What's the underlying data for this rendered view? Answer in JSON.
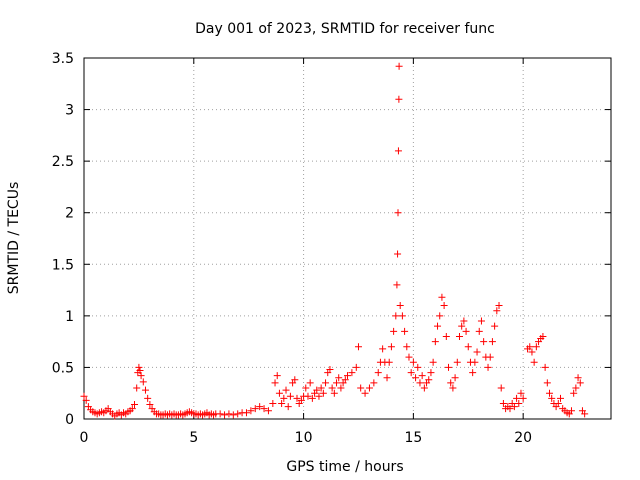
{
  "chart_data": {
    "type": "scatter",
    "title": "Day 001 of 2023, SRMTID for receiver func",
    "xlabel": "GPS time / hours",
    "ylabel": "SRMTID / TECUs",
    "xlim": [
      0,
      24
    ],
    "ylim": [
      0,
      3.5
    ],
    "xticks": [
      0,
      5,
      10,
      15,
      20
    ],
    "xtick_labels": [
      "0",
      "5",
      "10",
      "15",
      "20"
    ],
    "yticks": [
      0,
      0.5,
      1,
      1.5,
      2,
      2.5,
      3,
      3.5
    ],
    "ytick_labels": [
      "0",
      "0.5",
      "1",
      "1.5",
      "2",
      "2.5",
      "3",
      "3.5"
    ],
    "grid": true,
    "marker": "+",
    "series": [
      {
        "name": "SRMTID",
        "color": "#ff0000",
        "points": [
          [
            0.0,
            0.22
          ],
          [
            0.1,
            0.18
          ],
          [
            0.2,
            0.12
          ],
          [
            0.3,
            0.09
          ],
          [
            0.4,
            0.07
          ],
          [
            0.5,
            0.06
          ],
          [
            0.6,
            0.05
          ],
          [
            0.7,
            0.06
          ],
          [
            0.8,
            0.07
          ],
          [
            0.9,
            0.06
          ],
          [
            1.0,
            0.08
          ],
          [
            1.1,
            0.1
          ],
          [
            1.2,
            0.07
          ],
          [
            1.3,
            0.05
          ],
          [
            1.4,
            0.03
          ],
          [
            1.5,
            0.05
          ],
          [
            1.6,
            0.06
          ],
          [
            1.7,
            0.04
          ],
          [
            1.8,
            0.06
          ],
          [
            1.9,
            0.05
          ],
          [
            2.0,
            0.07
          ],
          [
            2.1,
            0.08
          ],
          [
            2.2,
            0.1
          ],
          [
            2.3,
            0.14
          ],
          [
            2.4,
            0.3
          ],
          [
            2.45,
            0.45
          ],
          [
            2.5,
            0.5
          ],
          [
            2.55,
            0.47
          ],
          [
            2.6,
            0.42
          ],
          [
            2.7,
            0.36
          ],
          [
            2.8,
            0.28
          ],
          [
            2.9,
            0.2
          ],
          [
            3.0,
            0.14
          ],
          [
            3.1,
            0.1
          ],
          [
            3.2,
            0.07
          ],
          [
            3.3,
            0.05
          ],
          [
            3.4,
            0.05
          ],
          [
            3.5,
            0.04
          ],
          [
            3.6,
            0.04
          ],
          [
            3.7,
            0.05
          ],
          [
            3.8,
            0.04
          ],
          [
            3.9,
            0.05
          ],
          [
            4.0,
            0.04
          ],
          [
            4.1,
            0.05
          ],
          [
            4.2,
            0.04
          ],
          [
            4.3,
            0.04
          ],
          [
            4.4,
            0.05
          ],
          [
            4.5,
            0.04
          ],
          [
            4.6,
            0.05
          ],
          [
            4.7,
            0.06
          ],
          [
            4.8,
            0.07
          ],
          [
            4.9,
            0.06
          ],
          [
            5.0,
            0.05
          ],
          [
            5.1,
            0.05
          ],
          [
            5.2,
            0.04
          ],
          [
            5.3,
            0.05
          ],
          [
            5.4,
            0.04
          ],
          [
            5.5,
            0.05
          ],
          [
            5.6,
            0.06
          ],
          [
            5.7,
            0.04
          ],
          [
            5.8,
            0.05
          ],
          [
            5.9,
            0.04
          ],
          [
            6.0,
            0.05
          ],
          [
            6.2,
            0.05
          ],
          [
            6.4,
            0.04
          ],
          [
            6.6,
            0.05
          ],
          [
            6.8,
            0.04
          ],
          [
            7.0,
            0.05
          ],
          [
            7.2,
            0.06
          ],
          [
            7.4,
            0.06
          ],
          [
            7.6,
            0.08
          ],
          [
            7.8,
            0.1
          ],
          [
            8.0,
            0.12
          ],
          [
            8.2,
            0.1
          ],
          [
            8.4,
            0.08
          ],
          [
            8.6,
            0.15
          ],
          [
            8.7,
            0.35
          ],
          [
            8.8,
            0.42
          ],
          [
            8.9,
            0.25
          ],
          [
            9.0,
            0.15
          ],
          [
            9.1,
            0.2
          ],
          [
            9.2,
            0.28
          ],
          [
            9.3,
            0.12
          ],
          [
            9.4,
            0.22
          ],
          [
            9.5,
            0.35
          ],
          [
            9.6,
            0.38
          ],
          [
            9.7,
            0.2
          ],
          [
            9.8,
            0.15
          ],
          [
            9.9,
            0.18
          ],
          [
            10.0,
            0.22
          ],
          [
            10.1,
            0.3
          ],
          [
            10.2,
            0.22
          ],
          [
            10.3,
            0.35
          ],
          [
            10.4,
            0.2
          ],
          [
            10.5,
            0.25
          ],
          [
            10.6,
            0.28
          ],
          [
            10.7,
            0.22
          ],
          [
            10.8,
            0.3
          ],
          [
            10.9,
            0.25
          ],
          [
            11.0,
            0.35
          ],
          [
            11.1,
            0.45
          ],
          [
            11.2,
            0.48
          ],
          [
            11.3,
            0.3
          ],
          [
            11.4,
            0.25
          ],
          [
            11.5,
            0.35
          ],
          [
            11.6,
            0.4
          ],
          [
            11.7,
            0.3
          ],
          [
            11.8,
            0.35
          ],
          [
            11.9,
            0.38
          ],
          [
            12.0,
            0.42
          ],
          [
            12.2,
            0.45
          ],
          [
            12.4,
            0.5
          ],
          [
            12.5,
            0.7
          ],
          [
            12.6,
            0.3
          ],
          [
            12.8,
            0.25
          ],
          [
            13.0,
            0.3
          ],
          [
            13.2,
            0.35
          ],
          [
            13.4,
            0.45
          ],
          [
            13.5,
            0.55
          ],
          [
            13.6,
            0.68
          ],
          [
            13.7,
            0.55
          ],
          [
            13.8,
            0.4
          ],
          [
            13.9,
            0.55
          ],
          [
            14.0,
            0.7
          ],
          [
            14.1,
            0.85
          ],
          [
            14.2,
            1.0
          ],
          [
            14.25,
            1.3
          ],
          [
            14.28,
            1.6
          ],
          [
            14.3,
            2.0
          ],
          [
            14.32,
            2.6
          ],
          [
            14.34,
            3.1
          ],
          [
            14.35,
            3.42
          ],
          [
            14.4,
            1.1
          ],
          [
            14.5,
            1.0
          ],
          [
            14.6,
            0.85
          ],
          [
            14.7,
            0.7
          ],
          [
            14.8,
            0.6
          ],
          [
            14.9,
            0.45
          ],
          [
            15.0,
            0.55
          ],
          [
            15.1,
            0.4
          ],
          [
            15.2,
            0.5
          ],
          [
            15.3,
            0.35
          ],
          [
            15.4,
            0.42
          ],
          [
            15.5,
            0.3
          ],
          [
            15.6,
            0.35
          ],
          [
            15.7,
            0.38
          ],
          [
            15.8,
            0.45
          ],
          [
            15.9,
            0.55
          ],
          [
            16.0,
            0.75
          ],
          [
            16.1,
            0.9
          ],
          [
            16.2,
            1.0
          ],
          [
            16.3,
            1.18
          ],
          [
            16.4,
            1.1
          ],
          [
            16.5,
            0.8
          ],
          [
            16.6,
            0.5
          ],
          [
            16.7,
            0.35
          ],
          [
            16.8,
            0.3
          ],
          [
            16.9,
            0.4
          ],
          [
            17.0,
            0.55
          ],
          [
            17.1,
            0.8
          ],
          [
            17.2,
            0.9
          ],
          [
            17.3,
            0.95
          ],
          [
            17.4,
            0.85
          ],
          [
            17.5,
            0.7
          ],
          [
            17.6,
            0.55
          ],
          [
            17.7,
            0.45
          ],
          [
            17.8,
            0.55
          ],
          [
            17.9,
            0.65
          ],
          [
            18.0,
            0.85
          ],
          [
            18.1,
            0.95
          ],
          [
            18.2,
            0.75
          ],
          [
            18.3,
            0.6
          ],
          [
            18.4,
            0.5
          ],
          [
            18.5,
            0.6
          ],
          [
            18.6,
            0.75
          ],
          [
            18.7,
            0.9
          ],
          [
            18.8,
            1.05
          ],
          [
            18.9,
            1.1
          ],
          [
            19.0,
            0.3
          ],
          [
            19.1,
            0.15
          ],
          [
            19.2,
            0.1
          ],
          [
            19.3,
            0.12
          ],
          [
            19.4,
            0.1
          ],
          [
            19.5,
            0.15
          ],
          [
            19.6,
            0.12
          ],
          [
            19.7,
            0.2
          ],
          [
            19.8,
            0.15
          ],
          [
            19.9,
            0.25
          ],
          [
            20.0,
            0.2
          ],
          [
            20.2,
            0.68
          ],
          [
            20.3,
            0.7
          ],
          [
            20.4,
            0.65
          ],
          [
            20.5,
            0.55
          ],
          [
            20.6,
            0.7
          ],
          [
            20.7,
            0.75
          ],
          [
            20.8,
            0.78
          ],
          [
            20.9,
            0.8
          ],
          [
            21.0,
            0.5
          ],
          [
            21.1,
            0.35
          ],
          [
            21.2,
            0.25
          ],
          [
            21.3,
            0.2
          ],
          [
            21.4,
            0.15
          ],
          [
            21.5,
            0.12
          ],
          [
            21.6,
            0.15
          ],
          [
            21.7,
            0.2
          ],
          [
            21.8,
            0.1
          ],
          [
            21.9,
            0.08
          ],
          [
            22.0,
            0.06
          ],
          [
            22.1,
            0.05
          ],
          [
            22.2,
            0.08
          ],
          [
            22.3,
            0.25
          ],
          [
            22.4,
            0.3
          ],
          [
            22.5,
            0.4
          ],
          [
            22.6,
            0.35
          ],
          [
            22.7,
            0.08
          ],
          [
            22.8,
            0.05
          ]
        ]
      }
    ]
  }
}
